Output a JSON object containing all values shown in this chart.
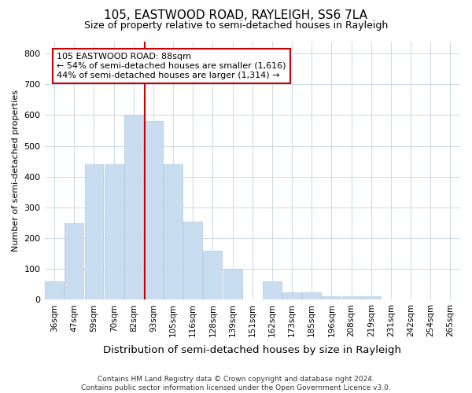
{
  "title": "105, EASTWOOD ROAD, RAYLEIGH, SS6 7LA",
  "subtitle": "Size of property relative to semi-detached houses in Rayleigh",
  "xlabel": "Distribution of semi-detached houses by size in Rayleigh",
  "ylabel": "Number of semi-detached properties",
  "footer_line1": "Contains HM Land Registry data © Crown copyright and database right 2024.",
  "footer_line2": "Contains public sector information licensed under the Open Government Licence v3.0.",
  "annotation_line1": "105 EASTWOOD ROAD: 88sqm",
  "annotation_line2": "← 54% of semi-detached houses are smaller (1,616)",
  "annotation_line3": "44% of semi-detached houses are larger (1,314) →",
  "categories": [
    "36sqm",
    "47sqm",
    "59sqm",
    "70sqm",
    "82sqm",
    "93sqm",
    "105sqm",
    "116sqm",
    "128sqm",
    "139sqm",
    "151sqm",
    "162sqm",
    "173sqm",
    "185sqm",
    "196sqm",
    "208sqm",
    "219sqm",
    "231sqm",
    "242sqm",
    "254sqm",
    "265sqm"
  ],
  "values": [
    60,
    250,
    440,
    440,
    600,
    580,
    440,
    255,
    160,
    98,
    0,
    60,
    25,
    25,
    10,
    10,
    10,
    0,
    0,
    0,
    0
  ],
  "bar_color": "#c8ddf0",
  "bar_edge_color": "#b0c8e0",
  "marker_color": "#cc0000",
  "annotation_box_color": "#cc0000",
  "background_color": "#ffffff",
  "plot_bg_color": "#ffffff",
  "grid_color": "#d0dce8",
  "ylim": [
    0,
    840
  ],
  "yticks": [
    0,
    100,
    200,
    300,
    400,
    500,
    600,
    700,
    800
  ]
}
